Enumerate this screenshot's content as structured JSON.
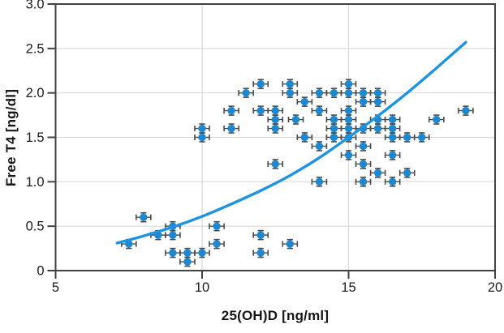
{
  "chart_data": {
    "type": "scatter",
    "title": "",
    "xlabel": "25(OH)D [ng/ml]",
    "ylabel": "Free T4 [ng/dl]",
    "xlim": [
      5,
      20
    ],
    "ylim": [
      0,
      3.0
    ],
    "x_ticks": [
      5,
      10,
      15,
      20
    ],
    "x_tick_labels": [
      "5",
      "10",
      "15",
      "20"
    ],
    "y_ticks": [
      0,
      0.5,
      1.0,
      1.5,
      2.0,
      2.5,
      3.0
    ],
    "y_tick_labels": [
      "0",
      "0.5",
      "1.0",
      "1.5",
      "2.0",
      "2.5",
      "3.0"
    ],
    "grid": true,
    "legend": "none",
    "x_error": 0.25,
    "y_error": 0.05,
    "points": [
      [
        7.5,
        0.3
      ],
      [
        8,
        0.6
      ],
      [
        8.5,
        0.4
      ],
      [
        9,
        0.5
      ],
      [
        9,
        0.4
      ],
      [
        9,
        0.2
      ],
      [
        9.5,
        0.2
      ],
      [
        9.5,
        0.1
      ],
      [
        10,
        0.2
      ],
      [
        10.5,
        0.5
      ],
      [
        10.5,
        0.3
      ],
      [
        12,
        0.4
      ],
      [
        12,
        0.2
      ],
      [
        13,
        0.3
      ],
      [
        10,
        1.6
      ],
      [
        10,
        1.5
      ],
      [
        11,
        1.8
      ],
      [
        11,
        1.6
      ],
      [
        11.5,
        2.0
      ],
      [
        12,
        2.1
      ],
      [
        12,
        1.8
      ],
      [
        12.5,
        1.8
      ],
      [
        12.5,
        1.7
      ],
      [
        12.5,
        1.6
      ],
      [
        12.5,
        1.2
      ],
      [
        13,
        2.1
      ],
      [
        13,
        2.0
      ],
      [
        13.2,
        1.7
      ],
      [
        13.5,
        1.9
      ],
      [
        13.5,
        1.5
      ],
      [
        14,
        2.0
      ],
      [
        14,
        1.8
      ],
      [
        14,
        1.4
      ],
      [
        14,
        1.0
      ],
      [
        14.5,
        2.0
      ],
      [
        14.5,
        1.7
      ],
      [
        14.5,
        1.6
      ],
      [
        14.5,
        1.5
      ],
      [
        15,
        2.1
      ],
      [
        15,
        2.0
      ],
      [
        15,
        1.8
      ],
      [
        15,
        1.7
      ],
      [
        15,
        1.6
      ],
      [
        15,
        1.5
      ],
      [
        15,
        1.3
      ],
      [
        15.5,
        2.0
      ],
      [
        15.5,
        1.9
      ],
      [
        15.5,
        1.6
      ],
      [
        15.5,
        1.4
      ],
      [
        15.5,
        1.2
      ],
      [
        15.5,
        1.0
      ],
      [
        16,
        2.0
      ],
      [
        16,
        1.9
      ],
      [
        16,
        1.7
      ],
      [
        16,
        1.6
      ],
      [
        16,
        1.1
      ],
      [
        16.5,
        1.7
      ],
      [
        16.5,
        1.6
      ],
      [
        16.5,
        1.5
      ],
      [
        16.5,
        1.3
      ],
      [
        16.5,
        1.0
      ],
      [
        17,
        1.5
      ],
      [
        17,
        1.1
      ],
      [
        17.5,
        1.5
      ],
      [
        18,
        1.7
      ],
      [
        19,
        1.8
      ]
    ],
    "trend_curve": {
      "x": [
        7.1,
        8,
        9,
        10,
        11,
        12,
        13,
        14,
        15,
        16,
        17,
        18,
        19
      ],
      "y": [
        0.31,
        0.39,
        0.49,
        0.61,
        0.75,
        0.9,
        1.07,
        1.27,
        1.5,
        1.74,
        2.0,
        2.28,
        2.57
      ]
    },
    "colors": {
      "marker": "#1d87cf",
      "curve": "#1e93e0",
      "error_bar": "#4a4a4a",
      "grid": "#d9d9d9",
      "spine": "#424242",
      "text": "#1a1a1a"
    }
  }
}
